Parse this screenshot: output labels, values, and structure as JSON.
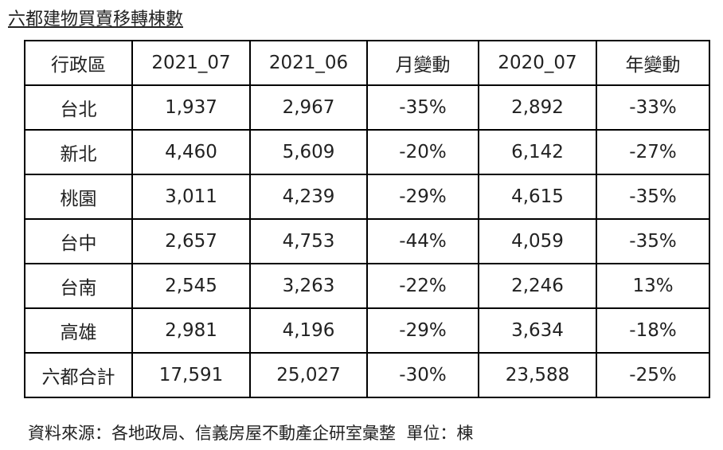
{
  "title": "六都建物買賣移轉棟數",
  "table": {
    "header": [
      "行政區",
      "2021_07",
      "2021_06",
      "月變動",
      "2020_07",
      "年變動"
    ],
    "rows": [
      [
        "台北",
        "1,937",
        "2,967",
        "-35%",
        "2,892",
        "-33%"
      ],
      [
        "新北",
        "4,460",
        "5,609",
        "-20%",
        "6,142",
        "-27%"
      ],
      [
        "桃園",
        "3,011",
        "4,239",
        "-29%",
        "4,615",
        "-35%"
      ],
      [
        "台中",
        "2,657",
        "4,753",
        "-44%",
        "4,059",
        "-35%"
      ],
      [
        "台南",
        "2,545",
        "3,263",
        "-22%",
        "2,246",
        "13%"
      ],
      [
        "高雄",
        "2,981",
        "4,196",
        "-29%",
        "3,634",
        "-18%"
      ],
      [
        "六都合計",
        "17,591",
        "25,027",
        "-30%",
        "23,588",
        "-25%"
      ]
    ]
  },
  "note": "資料來源：各地政局、信義房屋不動產企研室彙整  單位：棟"
}
